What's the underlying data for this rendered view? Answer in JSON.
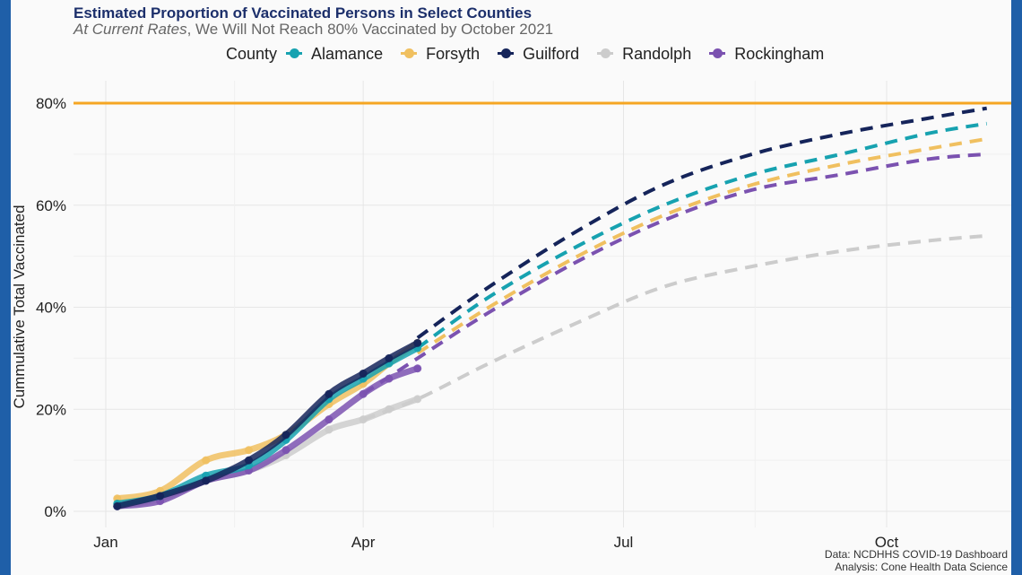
{
  "chart_data": {
    "type": "line",
    "title": "Estimated Proportion of Vaccinated Persons in Select Counties",
    "subtitle_italic": "At Current Rates",
    "subtitle_rest": ", We Will Not Reach 80% Vaccinated by October 2021",
    "ylabel": "Cummulative Total Vaccinated",
    "xlabel": "",
    "legend_title": "County",
    "legend_position": "top",
    "grid": true,
    "ylim": [
      0,
      0.84
    ],
    "y_ticks": [
      0,
      0.2,
      0.4,
      0.6,
      0.8
    ],
    "y_tick_labels": [
      "0%",
      "20%",
      "40%",
      "60%",
      "80%"
    ],
    "x_range": [
      "2021-01-01",
      "2021-11-10"
    ],
    "x_ticks": [
      "2021-01-01",
      "2021-04-01",
      "2021-07-01",
      "2021-10-01"
    ],
    "x_tick_labels": [
      "Jan",
      "Apr",
      "Jul",
      "Oct"
    ],
    "reference_line": {
      "y": 0.8,
      "color": "#f5a623"
    },
    "observed_end": "2021-04-20",
    "series": [
      {
        "name": "Alamance",
        "color": "#17a2b0",
        "observed": [
          [
            "2021-01-05",
            0.015
          ],
          [
            "2021-01-20",
            0.03
          ],
          [
            "2021-02-05",
            0.07
          ],
          [
            "2021-02-20",
            0.09
          ],
          [
            "2021-03-05",
            0.14
          ],
          [
            "2021-03-20",
            0.22
          ],
          [
            "2021-04-01",
            0.26
          ],
          [
            "2021-04-10",
            0.29
          ],
          [
            "2021-04-20",
            0.32
          ]
        ],
        "projected": [
          [
            "2021-04-20",
            0.32
          ],
          [
            "2021-05-15",
            0.42
          ],
          [
            "2021-06-15",
            0.52
          ],
          [
            "2021-07-15",
            0.6
          ],
          [
            "2021-08-15",
            0.66
          ],
          [
            "2021-09-15",
            0.7
          ],
          [
            "2021-10-15",
            0.74
          ],
          [
            "2021-11-05",
            0.76
          ]
        ]
      },
      {
        "name": "Forsyth",
        "color": "#f0c060",
        "observed": [
          [
            "2021-01-05",
            0.025
          ],
          [
            "2021-01-20",
            0.04
          ],
          [
            "2021-02-05",
            0.1
          ],
          [
            "2021-02-20",
            0.12
          ],
          [
            "2021-03-05",
            0.15
          ],
          [
            "2021-03-20",
            0.21
          ],
          [
            "2021-04-01",
            0.25
          ],
          [
            "2021-04-10",
            0.29
          ],
          [
            "2021-04-20",
            0.33
          ]
        ],
        "projected": [
          [
            "2021-04-20",
            0.31
          ],
          [
            "2021-05-15",
            0.4
          ],
          [
            "2021-06-15",
            0.5
          ],
          [
            "2021-07-15",
            0.58
          ],
          [
            "2021-08-15",
            0.64
          ],
          [
            "2021-09-15",
            0.68
          ],
          [
            "2021-10-15",
            0.71
          ],
          [
            "2021-11-05",
            0.73
          ]
        ]
      },
      {
        "name": "Guilford",
        "color": "#15245a",
        "observed": [
          [
            "2021-01-05",
            0.01
          ],
          [
            "2021-01-20",
            0.03
          ],
          [
            "2021-02-05",
            0.06
          ],
          [
            "2021-02-20",
            0.1
          ],
          [
            "2021-03-05",
            0.15
          ],
          [
            "2021-03-20",
            0.23
          ],
          [
            "2021-04-01",
            0.27
          ],
          [
            "2021-04-10",
            0.3
          ],
          [
            "2021-04-20",
            0.33
          ]
        ],
        "projected": [
          [
            "2021-04-20",
            0.34
          ],
          [
            "2021-05-15",
            0.44
          ],
          [
            "2021-06-15",
            0.55
          ],
          [
            "2021-07-15",
            0.64
          ],
          [
            "2021-08-15",
            0.7
          ],
          [
            "2021-09-15",
            0.74
          ],
          [
            "2021-10-15",
            0.77
          ],
          [
            "2021-11-05",
            0.79
          ]
        ]
      },
      {
        "name": "Randolph",
        "color": "#cccccc",
        "observed": [
          [
            "2021-01-05",
            0.01
          ],
          [
            "2021-01-20",
            0.025
          ],
          [
            "2021-02-05",
            0.06
          ],
          [
            "2021-02-20",
            0.08
          ],
          [
            "2021-03-05",
            0.11
          ],
          [
            "2021-03-20",
            0.16
          ],
          [
            "2021-04-01",
            0.18
          ],
          [
            "2021-04-10",
            0.2
          ],
          [
            "2021-04-20",
            0.22
          ]
        ],
        "projected": [
          [
            "2021-04-01",
            0.18
          ],
          [
            "2021-04-20",
            0.22
          ],
          [
            "2021-05-15",
            0.29
          ],
          [
            "2021-06-15",
            0.37
          ],
          [
            "2021-07-15",
            0.44
          ],
          [
            "2021-08-15",
            0.48
          ],
          [
            "2021-09-15",
            0.51
          ],
          [
            "2021-10-15",
            0.53
          ],
          [
            "2021-11-05",
            0.54
          ]
        ]
      },
      {
        "name": "Rockingham",
        "color": "#7b52b0",
        "observed": [
          [
            "2021-01-05",
            0.01
          ],
          [
            "2021-01-20",
            0.02
          ],
          [
            "2021-02-05",
            0.06
          ],
          [
            "2021-02-20",
            0.08
          ],
          [
            "2021-03-05",
            0.12
          ],
          [
            "2021-03-20",
            0.18
          ],
          [
            "2021-04-01",
            0.23
          ],
          [
            "2021-04-10",
            0.26
          ],
          [
            "2021-04-20",
            0.28
          ]
        ],
        "projected": [
          [
            "2021-04-01",
            0.23
          ],
          [
            "2021-04-20",
            0.3
          ],
          [
            "2021-05-15",
            0.39
          ],
          [
            "2021-06-15",
            0.49
          ],
          [
            "2021-07-15",
            0.57
          ],
          [
            "2021-08-15",
            0.63
          ],
          [
            "2021-09-15",
            0.66
          ],
          [
            "2021-10-15",
            0.69
          ],
          [
            "2021-11-05",
            0.7
          ]
        ]
      }
    ],
    "caption": [
      "Data: NCDHHS COVID-19 Dashboard",
      "Analysis: Cone Health Data Science"
    ]
  }
}
